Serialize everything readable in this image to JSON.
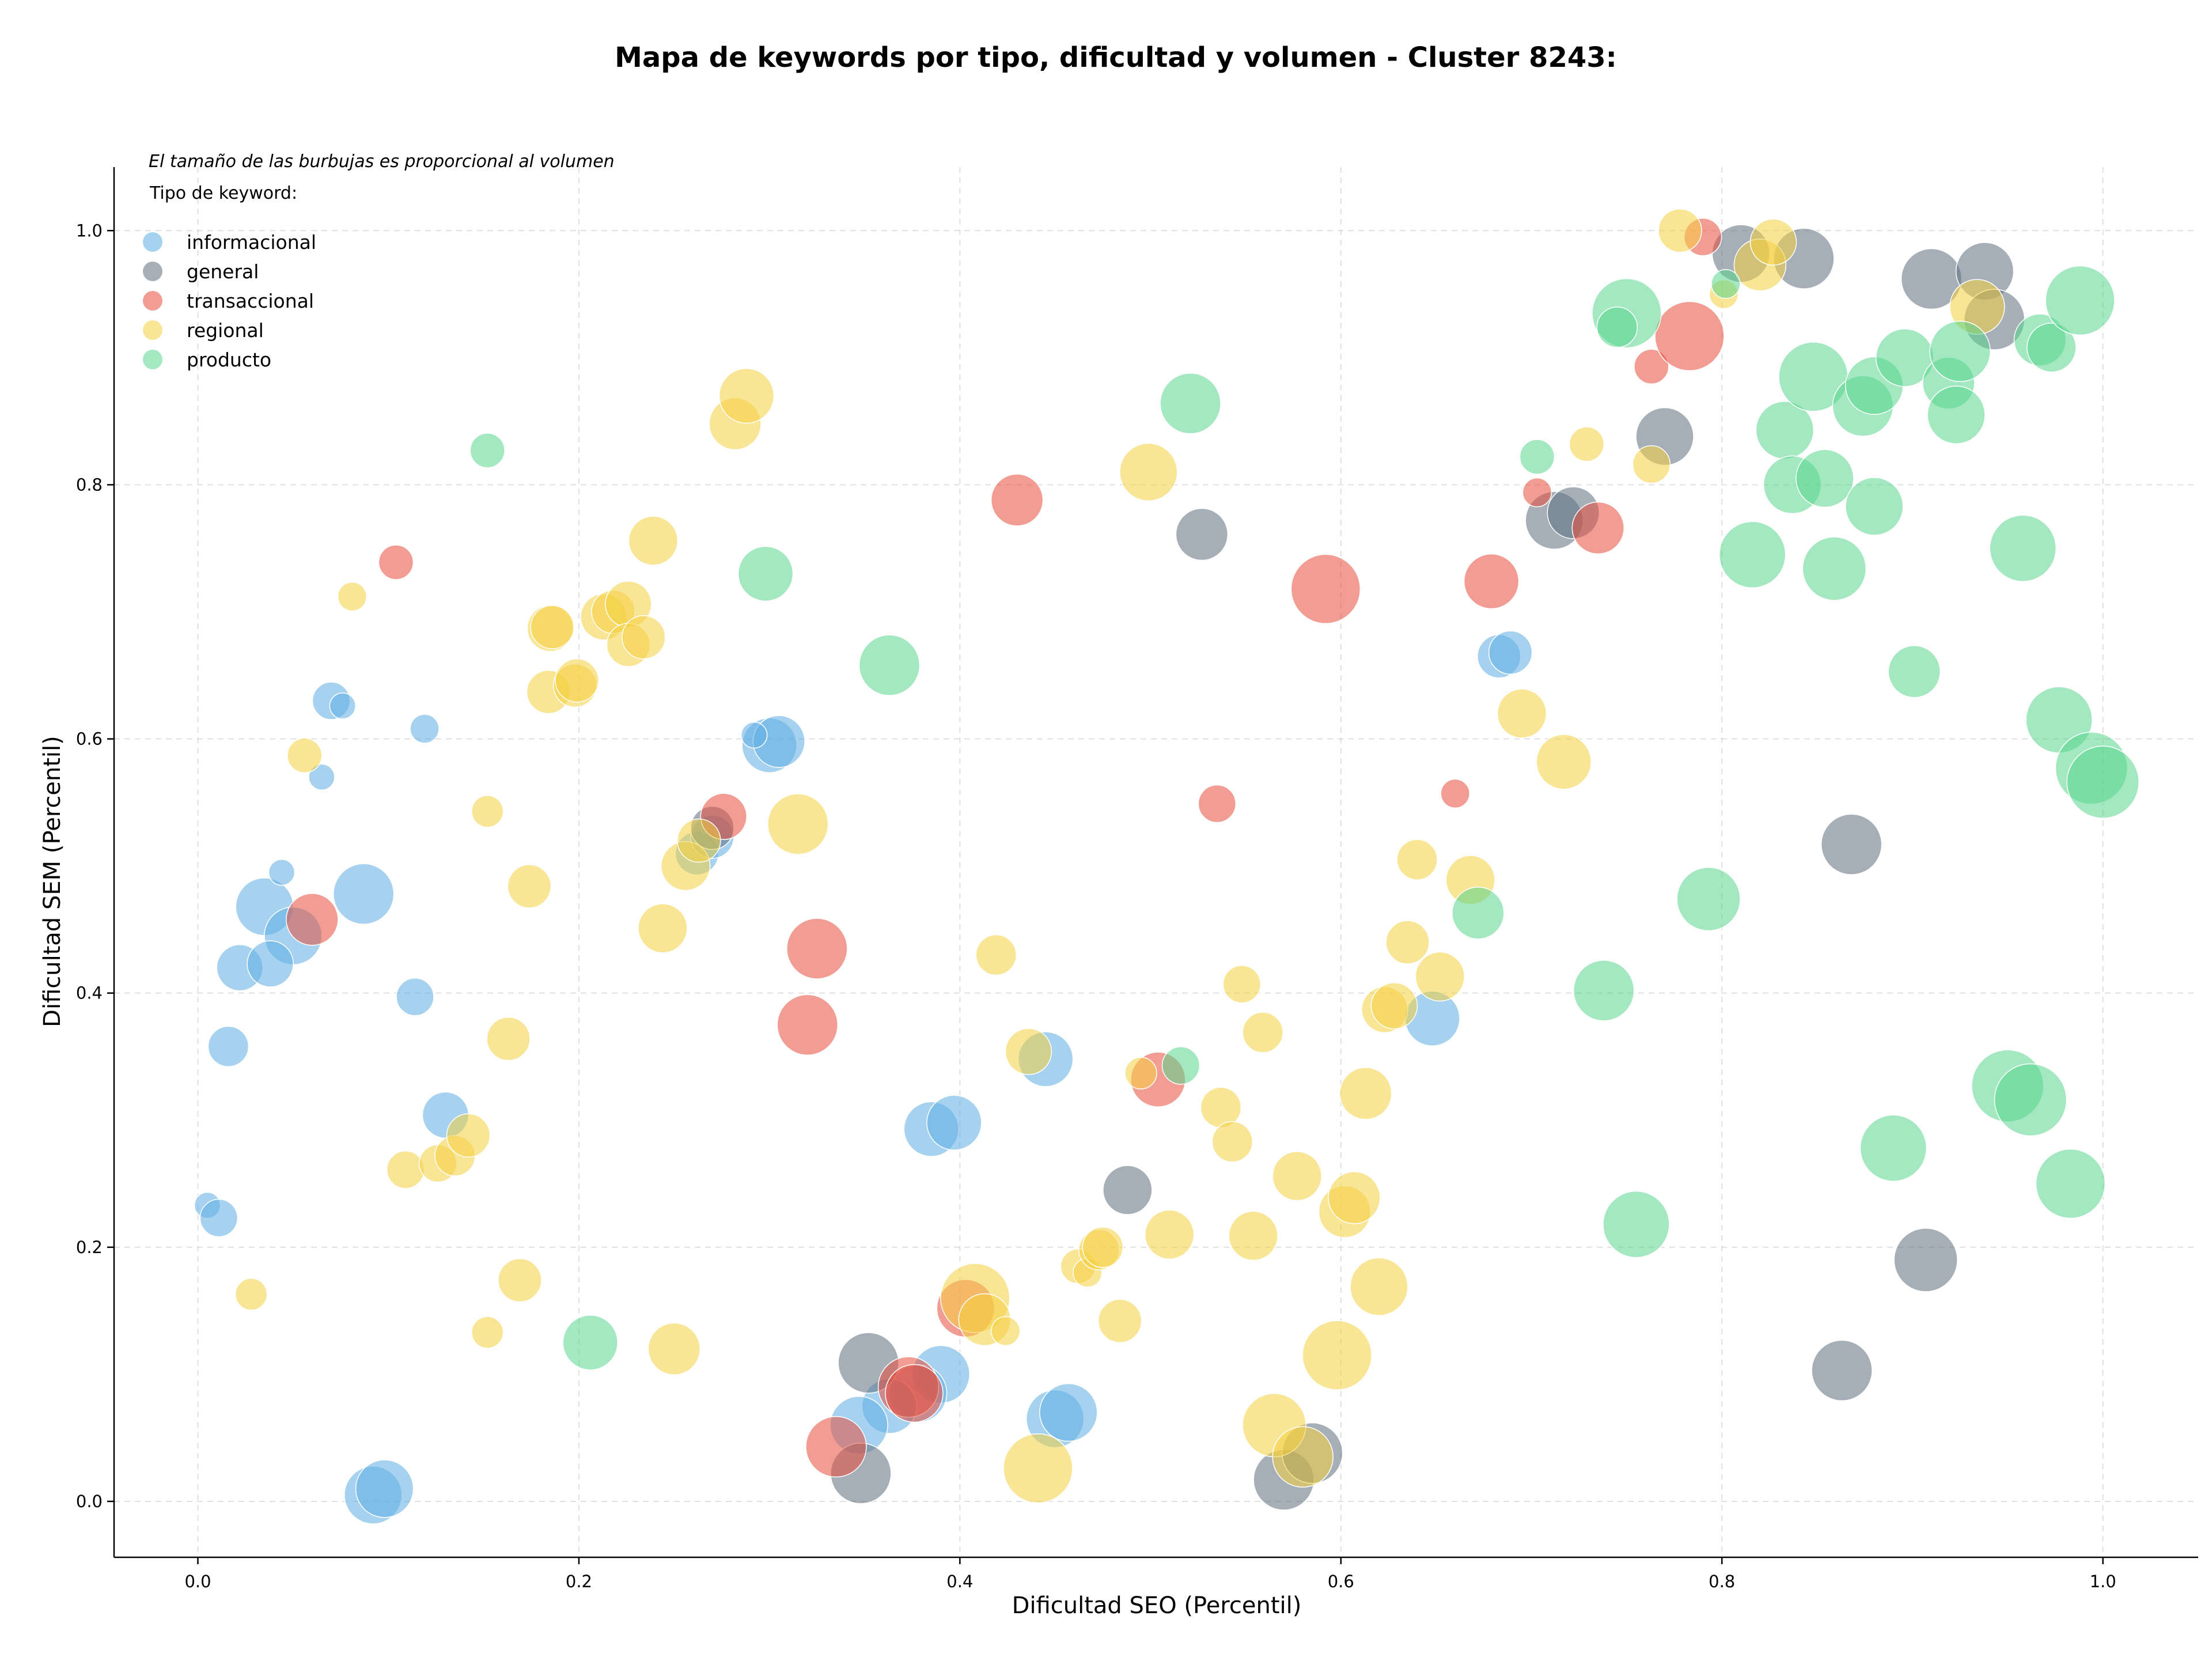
{
  "chart_data": {
    "type": "scatter",
    "title": "Mapa de keywords por tipo, dificultad y volumen - Cluster 8243:",
    "xlabel": "Dificultad SEO (Percentil)",
    "ylabel": "Dificultad SEM (Percentil)",
    "note": "El tamaño de las burbujas es proporcional al volumen",
    "legend_title": "Tipo de keyword:",
    "legend_position": "top-left",
    "grid": true,
    "xlim": [
      -0.044,
      1.05
    ],
    "ylim": [
      -0.044,
      1.05
    ],
    "xticks": [
      "0.0",
      "0.2",
      "0.4",
      "0.6",
      "0.8",
      "1.0"
    ],
    "yticks": [
      "0.0",
      "0.2",
      "0.4",
      "0.6",
      "0.8",
      "1.0"
    ],
    "series": [
      {
        "name": "informacional",
        "color": "#5dade2",
        "points": [
          [
            0.035,
            0.468,
            40
          ],
          [
            0.087,
            0.478,
            42
          ],
          [
            0.05,
            0.445,
            40
          ],
          [
            0.022,
            0.42,
            32
          ],
          [
            0.038,
            0.423,
            32
          ],
          [
            0.016,
            0.358,
            28
          ],
          [
            0.044,
            0.495,
            18
          ],
          [
            0.07,
            0.63,
            26
          ],
          [
            0.076,
            0.626,
            18
          ],
          [
            0.119,
            0.608,
            20
          ],
          [
            0.065,
            0.57,
            18
          ],
          [
            0.114,
            0.397,
            26
          ],
          [
            0.13,
            0.304,
            32
          ],
          [
            0.005,
            0.233,
            18
          ],
          [
            0.011,
            0.223,
            26
          ],
          [
            0.092,
            0.005,
            40
          ],
          [
            0.098,
            0.01,
            40
          ],
          [
            0.3,
            0.595,
            38
          ],
          [
            0.305,
            0.598,
            36
          ],
          [
            0.292,
            0.603,
            18
          ],
          [
            0.262,
            0.51,
            30
          ],
          [
            0.27,
            0.523,
            30
          ],
          [
            0.385,
            0.293,
            38
          ],
          [
            0.397,
            0.298,
            38
          ],
          [
            0.39,
            0.1,
            40
          ],
          [
            0.378,
            0.085,
            40
          ],
          [
            0.363,
            0.075,
            38
          ],
          [
            0.347,
            0.06,
            40
          ],
          [
            0.445,
            0.348,
            38
          ],
          [
            0.45,
            0.065,
            40
          ],
          [
            0.457,
            0.07,
            40
          ],
          [
            0.648,
            0.38,
            38
          ],
          [
            0.683,
            0.665,
            30
          ],
          [
            0.689,
            0.668,
            30
          ]
        ]
      },
      {
        "name": "general",
        "color": "#5d6d7e",
        "points": [
          [
            0.352,
            0.109,
            42
          ],
          [
            0.348,
            0.022,
            42
          ],
          [
            0.27,
            0.53,
            30
          ],
          [
            0.488,
            0.245,
            34
          ],
          [
            0.527,
            0.761,
            36
          ],
          [
            0.57,
            0.017,
            42
          ],
          [
            0.585,
            0.038,
            42
          ],
          [
            0.712,
            0.772,
            40
          ],
          [
            0.722,
            0.778,
            36
          ],
          [
            0.77,
            0.838,
            40
          ],
          [
            0.81,
            0.982,
            40
          ],
          [
            0.843,
            0.978,
            42
          ],
          [
            0.868,
            0.517,
            42
          ],
          [
            0.863,
            0.103,
            42
          ],
          [
            0.907,
            0.19,
            44
          ],
          [
            0.91,
            0.962,
            42
          ],
          [
            0.938,
            0.968,
            40
          ],
          [
            0.943,
            0.93,
            42
          ]
        ]
      },
      {
        "name": "transaccional",
        "color": "#e74c3c",
        "points": [
          [
            0.06,
            0.458,
            36
          ],
          [
            0.104,
            0.739,
            24
          ],
          [
            0.276,
            0.539,
            32
          ],
          [
            0.325,
            0.435,
            42
          ],
          [
            0.32,
            0.375,
            42
          ],
          [
            0.335,
            0.043,
            42
          ],
          [
            0.373,
            0.09,
            42
          ],
          [
            0.376,
            0.085,
            40
          ],
          [
            0.403,
            0.152,
            40
          ],
          [
            0.43,
            0.788,
            36
          ],
          [
            0.504,
            0.332,
            38
          ],
          [
            0.535,
            0.549,
            26
          ],
          [
            0.592,
            0.718,
            48
          ],
          [
            0.66,
            0.557,
            20
          ],
          [
            0.679,
            0.724,
            38
          ],
          [
            0.703,
            0.794,
            20
          ],
          [
            0.735,
            0.766,
            36
          ],
          [
            0.763,
            0.893,
            24
          ],
          [
            0.783,
            0.917,
            48
          ],
          [
            0.79,
            0.995,
            26
          ]
        ]
      },
      {
        "name": "regional",
        "color": "#f4d03f",
        "points": [
          [
            0.028,
            0.163,
            22
          ],
          [
            0.056,
            0.587,
            24
          ],
          [
            0.081,
            0.712,
            20
          ],
          [
            0.109,
            0.261,
            26
          ],
          [
            0.126,
            0.266,
            26
          ],
          [
            0.135,
            0.272,
            28
          ],
          [
            0.142,
            0.288,
            30
          ],
          [
            0.152,
            0.543,
            22
          ],
          [
            0.152,
            0.133,
            22
          ],
          [
            0.163,
            0.364,
            30
          ],
          [
            0.169,
            0.174,
            30
          ],
          [
            0.174,
            0.484,
            30
          ],
          [
            0.184,
            0.637,
            30
          ],
          [
            0.185,
            0.687,
            32
          ],
          [
            0.186,
            0.688,
            30
          ],
          [
            0.198,
            0.642,
            30
          ],
          [
            0.199,
            0.646,
            30
          ],
          [
            0.213,
            0.696,
            32
          ],
          [
            0.218,
            0.7,
            30
          ],
          [
            0.226,
            0.706,
            32
          ],
          [
            0.226,
            0.674,
            30
          ],
          [
            0.234,
            0.68,
            30
          ],
          [
            0.239,
            0.756,
            34
          ],
          [
            0.244,
            0.451,
            34
          ],
          [
            0.25,
            0.12,
            36
          ],
          [
            0.256,
            0.5,
            34
          ],
          [
            0.263,
            0.52,
            30
          ],
          [
            0.282,
            0.848,
            36
          ],
          [
            0.288,
            0.87,
            38
          ],
          [
            0.315,
            0.533,
            42
          ],
          [
            0.408,
            0.16,
            48
          ],
          [
            0.413,
            0.143,
            36
          ],
          [
            0.424,
            0.134,
            20
          ],
          [
            0.419,
            0.43,
            28
          ],
          [
            0.436,
            0.354,
            32
          ],
          [
            0.441,
            0.026,
            48
          ],
          [
            0.462,
            0.185,
            24
          ],
          [
            0.467,
            0.18,
            20
          ],
          [
            0.473,
            0.198,
            28
          ],
          [
            0.475,
            0.2,
            28
          ],
          [
            0.484,
            0.142,
            30
          ],
          [
            0.495,
            0.337,
            22
          ],
          [
            0.499,
            0.81,
            40
          ],
          [
            0.51,
            0.21,
            34
          ],
          [
            0.537,
            0.31,
            28
          ],
          [
            0.543,
            0.283,
            28
          ],
          [
            0.548,
            0.407,
            26
          ],
          [
            0.554,
            0.209,
            34
          ],
          [
            0.559,
            0.369,
            28
          ],
          [
            0.565,
            0.06,
            44
          ],
          [
            0.577,
            0.256,
            34
          ],
          [
            0.58,
            0.035,
            42
          ],
          [
            0.598,
            0.115,
            48
          ],
          [
            0.602,
            0.228,
            36
          ],
          [
            0.607,
            0.239,
            36
          ],
          [
            0.613,
            0.321,
            36
          ],
          [
            0.62,
            0.169,
            40
          ],
          [
            0.623,
            0.387,
            32
          ],
          [
            0.628,
            0.39,
            32
          ],
          [
            0.635,
            0.44,
            30
          ],
          [
            0.64,
            0.505,
            28
          ],
          [
            0.652,
            0.413,
            34
          ],
          [
            0.668,
            0.489,
            34
          ],
          [
            0.695,
            0.62,
            34
          ],
          [
            0.717,
            0.582,
            38
          ],
          [
            0.729,
            0.832,
            24
          ],
          [
            0.763,
            0.816,
            26
          ],
          [
            0.778,
            1.0,
            30
          ],
          [
            0.801,
            0.95,
            20
          ],
          [
            0.82,
            0.973,
            36
          ],
          [
            0.827,
            0.991,
            32
          ],
          [
            0.934,
            0.94,
            38
          ]
        ]
      },
      {
        "name": "producto",
        "color": "#58d68d",
        "points": [
          [
            0.152,
            0.827,
            24
          ],
          [
            0.206,
            0.125,
            38
          ],
          [
            0.298,
            0.73,
            38
          ],
          [
            0.363,
            0.658,
            42
          ],
          [
            0.521,
            0.864,
            42
          ],
          [
            0.516,
            0.343,
            26
          ],
          [
            0.672,
            0.463,
            36
          ],
          [
            0.703,
            0.822,
            24
          ],
          [
            0.738,
            0.402,
            42
          ],
          [
            0.75,
            0.935,
            48
          ],
          [
            0.745,
            0.924,
            28
          ],
          [
            0.755,
            0.218,
            46
          ],
          [
            0.793,
            0.474,
            44
          ],
          [
            0.802,
            0.958,
            20
          ],
          [
            0.816,
            0.745,
            46
          ],
          [
            0.833,
            0.843,
            40
          ],
          [
            0.837,
            0.8,
            40
          ],
          [
            0.848,
            0.885,
            48
          ],
          [
            0.854,
            0.805,
            40
          ],
          [
            0.859,
            0.734,
            44
          ],
          [
            0.874,
            0.862,
            42
          ],
          [
            0.88,
            0.783,
            40
          ],
          [
            0.88,
            0.878,
            40
          ],
          [
            0.89,
            0.278,
            46
          ],
          [
            0.896,
            0.9,
            40
          ],
          [
            0.901,
            0.653,
            36
          ],
          [
            0.919,
            0.88,
            36
          ],
          [
            0.923,
            0.855,
            40
          ],
          [
            0.925,
            0.905,
            42
          ],
          [
            0.95,
            0.327,
            50
          ],
          [
            0.958,
            0.75,
            46
          ],
          [
            0.962,
            0.316,
            50
          ],
          [
            0.967,
            0.914,
            36
          ],
          [
            0.973,
            0.908,
            34
          ],
          [
            0.977,
            0.615,
            46
          ],
          [
            0.983,
            0.25,
            48
          ],
          [
            0.988,
            0.945,
            48
          ],
          [
            0.994,
            0.577,
            50
          ],
          [
            1.0,
            0.566,
            50
          ]
        ]
      }
    ]
  }
}
